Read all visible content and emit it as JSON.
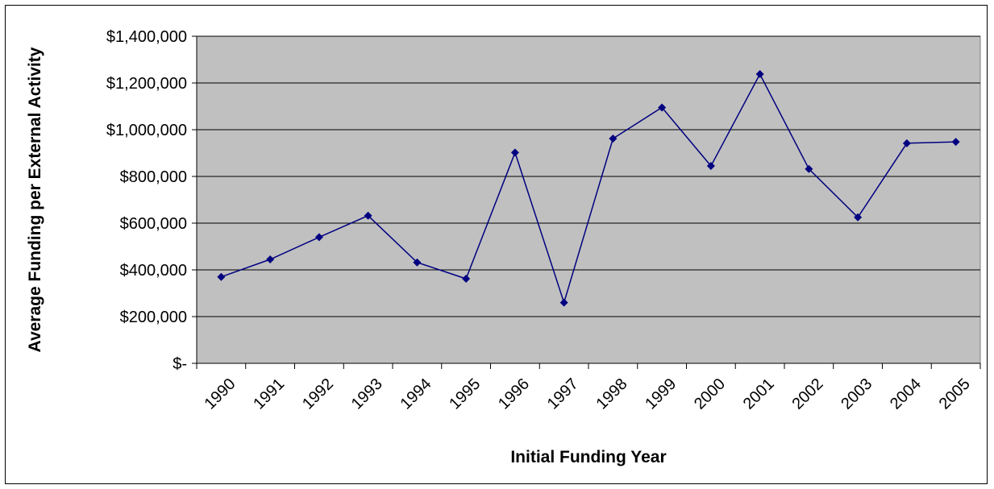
{
  "chart_data": {
    "type": "line",
    "title": "",
    "xlabel": "Initial Funding Year",
    "ylabel": "Average Funding per External Activity",
    "categories": [
      "1990",
      "1991",
      "1992",
      "1993",
      "1994",
      "1995",
      "1996",
      "1997",
      "1998",
      "1999",
      "2000",
      "2001",
      "2002",
      "2003",
      "2004",
      "2005"
    ],
    "series": [
      {
        "values": [
          370000,
          445000,
          540000,
          632000,
          432000,
          362000,
          902000,
          260000,
          962000,
          1095000,
          845000,
          1238000,
          832000,
          625000,
          942000,
          948000
        ]
      }
    ],
    "ylim": [
      0,
      1400000
    ],
    "yticks": [
      0,
      200000,
      400000,
      600000,
      800000,
      1000000,
      1200000,
      1400000
    ],
    "ytick_labels": [
      "$-",
      "$200,000",
      "$400,000",
      "$600,000",
      "$800,000",
      "$1,000,000",
      "$1,200,000",
      "$1,400,000"
    ],
    "grid": true,
    "legend": "none",
    "colors": {
      "plot_background": "#c0c0c0",
      "line": "#000080",
      "marker": "#000080",
      "grid": "#000000"
    }
  }
}
